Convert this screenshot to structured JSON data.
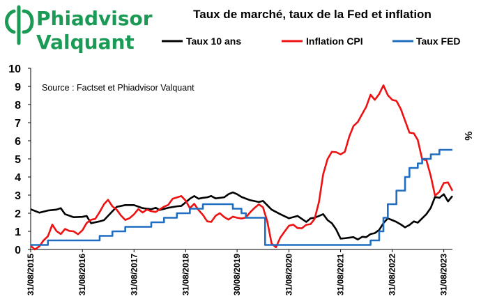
{
  "logo": {
    "line1": "Phiadvisor",
    "line2": "Valquant",
    "color": "#1a9a55",
    "icon": "phi-logo-icon"
  },
  "chart_data": {
    "type": "line",
    "title": "Taux de marché, taux de la Fed et inflation",
    "source": "Source : Factset et Phiadvisor Valquant",
    "ylabel": "%",
    "ylim": [
      0,
      10
    ],
    "yticks": [
      "0",
      "1",
      "2",
      "3",
      "4",
      "5",
      "6",
      "7",
      "8",
      "9",
      "10"
    ],
    "xlim": [
      "2015-08-31",
      "2023-10-31"
    ],
    "xticks": [
      {
        "date": "2015-08-31",
        "label": "31/08/2015"
      },
      {
        "date": "2016-08-31",
        "label": "31/08/2016"
      },
      {
        "date": "2017-08-31",
        "label": "31/08/2017"
      },
      {
        "date": "2018-08-31",
        "label": "31/08/2018"
      },
      {
        "date": "2019-08-30",
        "label": "30/08/2019"
      },
      {
        "date": "2020-08-31",
        "label": "31/08/2020"
      },
      {
        "date": "2021-08-31",
        "label": "31/08/2021"
      },
      {
        "date": "2022-08-31",
        "label": "31/08/2022"
      },
      {
        "date": "2023-08-31",
        "label": "31/08/2023"
      }
    ],
    "grid": false,
    "legend_position": "top",
    "series": [
      {
        "name": "Taux 10 ans",
        "color": "#000000",
        "points": [
          [
            "2015-08-31",
            2.22
          ],
          [
            "2015-10-31",
            2.03
          ],
          [
            "2015-12-31",
            2.15
          ],
          [
            "2016-02-29",
            2.2
          ],
          [
            "2016-03-31",
            2.28
          ],
          [
            "2016-04-30",
            1.95
          ],
          [
            "2016-06-30",
            1.78
          ],
          [
            "2016-08-31",
            1.8
          ],
          [
            "2016-09-30",
            1.85
          ],
          [
            "2016-10-31",
            1.45
          ],
          [
            "2016-12-31",
            1.55
          ],
          [
            "2017-01-31",
            1.62
          ],
          [
            "2017-02-28",
            1.85
          ],
          [
            "2017-04-30",
            2.35
          ],
          [
            "2017-06-30",
            2.45
          ],
          [
            "2017-08-31",
            2.45
          ],
          [
            "2017-10-31",
            2.28
          ],
          [
            "2017-12-31",
            2.22
          ],
          [
            "2018-01-31",
            2.3
          ],
          [
            "2018-02-28",
            2.18
          ],
          [
            "2018-04-30",
            2.3
          ],
          [
            "2018-06-30",
            2.38
          ],
          [
            "2018-07-31",
            2.4
          ],
          [
            "2018-08-31",
            2.6
          ],
          [
            "2018-09-30",
            2.8
          ],
          [
            "2018-10-31",
            2.95
          ],
          [
            "2018-11-30",
            2.8
          ],
          [
            "2018-12-31",
            2.85
          ],
          [
            "2019-01-31",
            2.88
          ],
          [
            "2019-02-28",
            2.95
          ],
          [
            "2019-03-31",
            2.82
          ],
          [
            "2019-05-31",
            2.88
          ],
          [
            "2019-06-30",
            3.05
          ],
          [
            "2019-07-31",
            3.15
          ],
          [
            "2019-08-30",
            3.05
          ],
          [
            "2019-09-30",
            2.9
          ],
          [
            "2019-11-30",
            2.72
          ],
          [
            "2020-01-31",
            2.62
          ],
          [
            "2020-02-29",
            2.68
          ],
          [
            "2020-04-30",
            2.2
          ],
          [
            "2020-06-30",
            1.95
          ],
          [
            "2020-08-31",
            1.72
          ],
          [
            "2020-10-31",
            1.85
          ],
          [
            "2020-12-31",
            1.52
          ],
          [
            "2021-01-31",
            1.72
          ],
          [
            "2021-02-28",
            1.75
          ],
          [
            "2021-03-31",
            1.85
          ],
          [
            "2021-04-30",
            1.95
          ],
          [
            "2021-05-31",
            1.62
          ],
          [
            "2021-06-30",
            1.45
          ],
          [
            "2021-07-31",
            1.1
          ],
          [
            "2021-08-31",
            0.6
          ],
          [
            "2021-09-30",
            0.62
          ],
          [
            "2021-10-31",
            0.65
          ],
          [
            "2021-11-30",
            0.68
          ],
          [
            "2021-12-31",
            0.55
          ],
          [
            "2022-01-31",
            0.7
          ],
          [
            "2022-02-28",
            0.68
          ],
          [
            "2022-03-31",
            0.85
          ],
          [
            "2022-04-30",
            0.9
          ],
          [
            "2022-05-31",
            1.08
          ],
          [
            "2022-06-30",
            1.45
          ],
          [
            "2022-07-31",
            1.72
          ],
          [
            "2022-08-31",
            1.62
          ],
          [
            "2022-09-30",
            1.52
          ],
          [
            "2022-10-31",
            1.38
          ],
          [
            "2022-11-30",
            1.22
          ],
          [
            "2022-12-31",
            1.35
          ],
          [
            "2023-01-31",
            1.55
          ],
          [
            "2023-02-28",
            1.48
          ],
          [
            "2023-03-31",
            1.72
          ],
          [
            "2023-04-30",
            1.95
          ],
          [
            "2023-05-31",
            2.3
          ],
          [
            "2023-06-30",
            2.9
          ],
          [
            "2023-07-31",
            2.85
          ],
          [
            "2023-08-31",
            3.05
          ],
          [
            "2023-09-30",
            2.65
          ],
          [
            "2023-10-31",
            2.95
          ]
        ]
      },
      {
        "name": "Inflation CPI",
        "color": "#ee1111",
        "points": [
          [
            "2015-08-31",
            0.2
          ],
          [
            "2015-09-30",
            0.0
          ],
          [
            "2015-10-31",
            0.17
          ],
          [
            "2015-11-30",
            0.5
          ],
          [
            "2015-12-31",
            0.73
          ],
          [
            "2016-01-31",
            1.37
          ],
          [
            "2016-02-29",
            1.02
          ],
          [
            "2016-03-31",
            0.85
          ],
          [
            "2016-04-30",
            1.13
          ],
          [
            "2016-05-31",
            1.02
          ],
          [
            "2016-06-30",
            1.0
          ],
          [
            "2016-07-31",
            0.84
          ],
          [
            "2016-08-31",
            1.06
          ],
          [
            "2016-09-30",
            1.46
          ],
          [
            "2016-10-31",
            1.64
          ],
          [
            "2016-11-30",
            1.69
          ],
          [
            "2016-12-31",
            2.07
          ],
          [
            "2017-01-31",
            2.5
          ],
          [
            "2017-02-28",
            2.74
          ],
          [
            "2017-03-31",
            2.38
          ],
          [
            "2017-04-30",
            2.2
          ],
          [
            "2017-05-31",
            1.87
          ],
          [
            "2017-06-30",
            1.63
          ],
          [
            "2017-07-31",
            1.73
          ],
          [
            "2017-08-31",
            1.94
          ],
          [
            "2017-09-30",
            2.23
          ],
          [
            "2017-10-31",
            2.04
          ],
          [
            "2017-11-30",
            2.2
          ],
          [
            "2017-12-31",
            2.11
          ],
          [
            "2018-01-31",
            2.07
          ],
          [
            "2018-02-28",
            2.21
          ],
          [
            "2018-03-31",
            2.36
          ],
          [
            "2018-04-30",
            2.46
          ],
          [
            "2018-05-31",
            2.8
          ],
          [
            "2018-06-30",
            2.87
          ],
          [
            "2018-07-31",
            2.95
          ],
          [
            "2018-08-31",
            2.7
          ],
          [
            "2018-09-30",
            2.28
          ],
          [
            "2018-10-31",
            2.52
          ],
          [
            "2018-11-30",
            2.18
          ],
          [
            "2018-12-31",
            1.91
          ],
          [
            "2019-01-31",
            1.55
          ],
          [
            "2019-02-28",
            1.52
          ],
          [
            "2019-03-31",
            1.86
          ],
          [
            "2019-04-30",
            2.0
          ],
          [
            "2019-05-31",
            1.79
          ],
          [
            "2019-06-30",
            1.65
          ],
          [
            "2019-07-31",
            1.81
          ],
          [
            "2019-08-30",
            1.75
          ],
          [
            "2019-09-30",
            1.71
          ],
          [
            "2019-10-31",
            1.76
          ],
          [
            "2019-11-30",
            2.05
          ],
          [
            "2019-12-31",
            2.29
          ],
          [
            "2020-01-31",
            2.49
          ],
          [
            "2020-02-29",
            2.33
          ],
          [
            "2020-03-31",
            1.54
          ],
          [
            "2020-04-30",
            0.33
          ],
          [
            "2020-05-31",
            0.12
          ],
          [
            "2020-06-30",
            0.65
          ],
          [
            "2020-07-31",
            0.99
          ],
          [
            "2020-08-31",
            1.31
          ],
          [
            "2020-09-30",
            1.37
          ],
          [
            "2020-10-31",
            1.18
          ],
          [
            "2020-11-30",
            1.17
          ],
          [
            "2020-12-31",
            1.36
          ],
          [
            "2021-01-31",
            1.4
          ],
          [
            "2021-02-28",
            1.68
          ],
          [
            "2021-03-31",
            2.62
          ],
          [
            "2021-04-30",
            4.16
          ],
          [
            "2021-05-31",
            4.99
          ],
          [
            "2021-06-30",
            5.39
          ],
          [
            "2021-07-31",
            5.37
          ],
          [
            "2021-08-31",
            5.25
          ],
          [
            "2021-09-30",
            5.39
          ],
          [
            "2021-10-31",
            6.22
          ],
          [
            "2021-11-30",
            6.81
          ],
          [
            "2021-12-31",
            7.04
          ],
          [
            "2022-01-31",
            7.48
          ],
          [
            "2022-02-28",
            7.87
          ],
          [
            "2022-03-31",
            8.54
          ],
          [
            "2022-04-30",
            8.26
          ],
          [
            "2022-05-31",
            8.58
          ],
          [
            "2022-06-30",
            9.06
          ],
          [
            "2022-07-31",
            8.52
          ],
          [
            "2022-08-31",
            8.26
          ],
          [
            "2022-09-30",
            8.2
          ],
          [
            "2022-10-31",
            7.75
          ],
          [
            "2022-11-30",
            7.11
          ],
          [
            "2022-12-31",
            6.45
          ],
          [
            "2023-01-31",
            6.41
          ],
          [
            "2023-02-28",
            6.04
          ],
          [
            "2023-03-31",
            4.98
          ],
          [
            "2023-04-30",
            4.93
          ],
          [
            "2023-05-31",
            4.05
          ],
          [
            "2023-06-30",
            2.97
          ],
          [
            "2023-07-31",
            3.18
          ],
          [
            "2023-08-31",
            3.67
          ],
          [
            "2023-09-30",
            3.7
          ],
          [
            "2023-10-31",
            3.24
          ]
        ]
      },
      {
        "name": "Taux FED",
        "color": "#1f6ec2",
        "points": [
          [
            "2015-08-31",
            0.25
          ],
          [
            "2015-12-31",
            0.25
          ],
          [
            "2015-12-31",
            0.5
          ],
          [
            "2016-12-31",
            0.5
          ],
          [
            "2016-12-31",
            0.75
          ],
          [
            "2017-03-31",
            0.75
          ],
          [
            "2017-03-31",
            1.0
          ],
          [
            "2017-06-30",
            1.0
          ],
          [
            "2017-06-30",
            1.25
          ],
          [
            "2017-12-31",
            1.25
          ],
          [
            "2017-12-31",
            1.5
          ],
          [
            "2018-03-31",
            1.5
          ],
          [
            "2018-03-31",
            1.75
          ],
          [
            "2018-06-30",
            1.75
          ],
          [
            "2018-06-30",
            2.0
          ],
          [
            "2018-09-30",
            2.0
          ],
          [
            "2018-09-30",
            2.25
          ],
          [
            "2018-12-31",
            2.25
          ],
          [
            "2018-12-31",
            2.5
          ],
          [
            "2019-07-31",
            2.5
          ],
          [
            "2019-07-31",
            2.25
          ],
          [
            "2019-09-30",
            2.25
          ],
          [
            "2019-09-30",
            2.0
          ],
          [
            "2019-10-31",
            2.0
          ],
          [
            "2019-10-31",
            1.75
          ],
          [
            "2020-03-15",
            1.75
          ],
          [
            "2020-03-15",
            0.25
          ],
          [
            "2022-03-31",
            0.25
          ],
          [
            "2022-03-31",
            0.5
          ],
          [
            "2022-05-31",
            0.5
          ],
          [
            "2022-05-31",
            1.0
          ],
          [
            "2022-06-30",
            1.0
          ],
          [
            "2022-06-30",
            1.75
          ],
          [
            "2022-07-31",
            1.75
          ],
          [
            "2022-07-31",
            2.5
          ],
          [
            "2022-09-30",
            2.5
          ],
          [
            "2022-09-30",
            3.25
          ],
          [
            "2022-11-30",
            3.25
          ],
          [
            "2022-11-30",
            4.0
          ],
          [
            "2022-12-31",
            4.0
          ],
          [
            "2022-12-31",
            4.5
          ],
          [
            "2023-02-28",
            4.5
          ],
          [
            "2023-02-28",
            4.75
          ],
          [
            "2023-03-31",
            4.75
          ],
          [
            "2023-03-31",
            5.0
          ],
          [
            "2023-05-31",
            5.0
          ],
          [
            "2023-05-31",
            5.25
          ],
          [
            "2023-07-31",
            5.25
          ],
          [
            "2023-07-31",
            5.5
          ],
          [
            "2023-10-31",
            5.5
          ]
        ]
      }
    ]
  }
}
